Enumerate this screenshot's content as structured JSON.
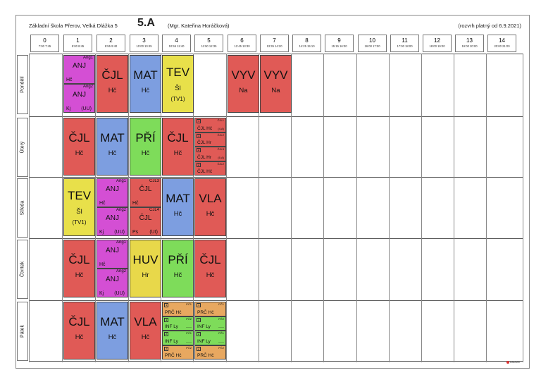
{
  "header": {
    "school": "Základní škola Přerov, Velká Dlážka 5",
    "class_name": "5.A",
    "teacher": "(Mgr. Kateřina Horáčková)",
    "valid_from": "(rozvrh platný od 6.9.2021)"
  },
  "periods": [
    {
      "num": "0",
      "time": "7:00 7:45"
    },
    {
      "num": "1",
      "time": "8:00 8:45"
    },
    {
      "num": "2",
      "time": "8:55 9:40"
    },
    {
      "num": "3",
      "time": "10:00 10:45"
    },
    {
      "num": "4",
      "time": "10:55 11:40"
    },
    {
      "num": "5",
      "time": "11:50 12:35"
    },
    {
      "num": "6",
      "time": "12:45 13:30"
    },
    {
      "num": "7",
      "time": "13:35 14:20"
    },
    {
      "num": "8",
      "time": "14:25 15:10"
    },
    {
      "num": "9",
      "time": "15:15 16:00"
    },
    {
      "num": "10",
      "time": "16:00 17:00"
    },
    {
      "num": "11",
      "time": "17:00 18:00"
    },
    {
      "num": "12",
      "time": "18:00 19:00"
    },
    {
      "num": "13",
      "time": "19:00 20:00"
    },
    {
      "num": "14",
      "time": "20:00 21:00"
    }
  ],
  "days": [
    "Pondělí",
    "Úterý",
    "Středa",
    "Čtvrtek",
    "Pátek"
  ],
  "colors": {
    "czech": "#e05a56",
    "english": "#d44fd4",
    "math": "#7d9ee0",
    "tev": "#e8e04a",
    "vyv": "#e05a56",
    "science": "#7edc5a",
    "huv": "#e8d84a",
    "inf": "#7edc5a",
    "prc": "#e8a860"
  },
  "lessons": {
    "mon": {
      "p1_a": {
        "grp": "Ang1",
        "subj": "ANJ",
        "tch": "Hč",
        "room": ""
      },
      "p1_b": {
        "grp": "Ang2",
        "subj": "ANJ",
        "tch": "Kj",
        "room": "(UU)"
      },
      "p2": {
        "subj": "ČJL",
        "tch": "Hč"
      },
      "p3": {
        "subj": "MAT",
        "tch": "Hč"
      },
      "p4": {
        "subj": "TEV",
        "tch": "Šl",
        "room": "(TV1)"
      },
      "p6": {
        "subj": "VYV",
        "tch": "Na"
      },
      "p7": {
        "subj": "VYV",
        "tch": "Na"
      }
    },
    "tue": {
      "p1": {
        "subj": "ČJL",
        "tch": "Hč"
      },
      "p2": {
        "subj": "MAT",
        "tch": "Hč"
      },
      "p3": {
        "subj": "PŘÍ",
        "tch": "Hč"
      },
      "p4": {
        "subj": "ČJL",
        "tch": "Hč"
      },
      "p5_1": {
        "num": "1",
        "grp": "ČJL1",
        "txt": "ČJL Hč",
        "rm": "(4.A)"
      },
      "p5_2": {
        "num": "1",
        "grp": "ČJL2",
        "txt": "ČJL Hr",
        "rm": ""
      },
      "p5_3": {
        "num": "2",
        "grp": "ČJL3",
        "txt": "ČJL Hr",
        "rm": "(5.A)"
      },
      "p5_4": {
        "num": "2",
        "grp": "ČJL2",
        "txt": "ČJL Hč",
        "rm": ""
      }
    },
    "wed": {
      "p1": {
        "subj": "TEV",
        "tch": "Šl",
        "room": "(TV1)"
      },
      "p2_a": {
        "grp": "Ang1",
        "subj": "ANJ",
        "tch": "Hč",
        "room": ""
      },
      "p2_b": {
        "grp": "Ang2",
        "subj": "ANJ",
        "tch": "Kj",
        "room": "(UU)"
      },
      "p3_a": {
        "grp": "ČJL3",
        "subj": "ČJL",
        "tch": "Hč",
        "room": ""
      },
      "p3_b": {
        "grp": "ČJL4",
        "subj": "ČJL",
        "tch": "Ps",
        "room": "(UI)"
      },
      "p4": {
        "subj": "MAT",
        "tch": "Hč"
      },
      "p5": {
        "subj": "VLA",
        "tch": "Hč"
      }
    },
    "thu": {
      "p1": {
        "subj": "ČJL",
        "tch": "Hč"
      },
      "p2_a": {
        "grp": "Ang1",
        "subj": "ANJ",
        "tch": "Hč",
        "room": ""
      },
      "p2_b": {
        "grp": "Ang2",
        "subj": "ANJ",
        "tch": "Kj",
        "room": "(UU)"
      },
      "p3": {
        "subj": "HUV",
        "tch": "Hr"
      },
      "p4": {
        "subj": "PŘÍ",
        "tch": "Hč"
      },
      "p5": {
        "subj": "ČJL",
        "tch": "Hč"
      }
    },
    "fri": {
      "p1": {
        "subj": "ČJL",
        "tch": "Hč"
      },
      "p2": {
        "subj": "MAT",
        "tch": "Hč"
      },
      "p3": {
        "subj": "VLA",
        "tch": "Hč"
      },
      "p4_1": {
        "num": "1",
        "grp": "PČ1",
        "txt": "PRČ Hč",
        "rm": ""
      },
      "p4_2": {
        "num": "1",
        "grp": "PČ2",
        "txt": "INF Ly",
        "rm": "——"
      },
      "p4_3": {
        "num": "2",
        "grp": "PČ1",
        "txt": "INF Ly",
        "rm": "——"
      },
      "p4_4": {
        "num": "2",
        "grp": "PČ2",
        "txt": "PRČ Hč",
        "rm": ""
      },
      "p5_1": {
        "num": "1",
        "grp": "PČ1",
        "txt": "PRČ Hč",
        "rm": ""
      },
      "p5_2": {
        "num": "1",
        "grp": "PČ2",
        "txt": "INF Ly",
        "rm": "——"
      },
      "p5_3": {
        "num": "2",
        "grp": "PČ1",
        "txt": "INF Ly",
        "rm": "——"
      },
      "p5_4": {
        "num": "2",
        "grp": "PČ2",
        "txt": "PRČ Hč",
        "rm": ""
      }
    }
  },
  "logo_text": "bakaláři"
}
